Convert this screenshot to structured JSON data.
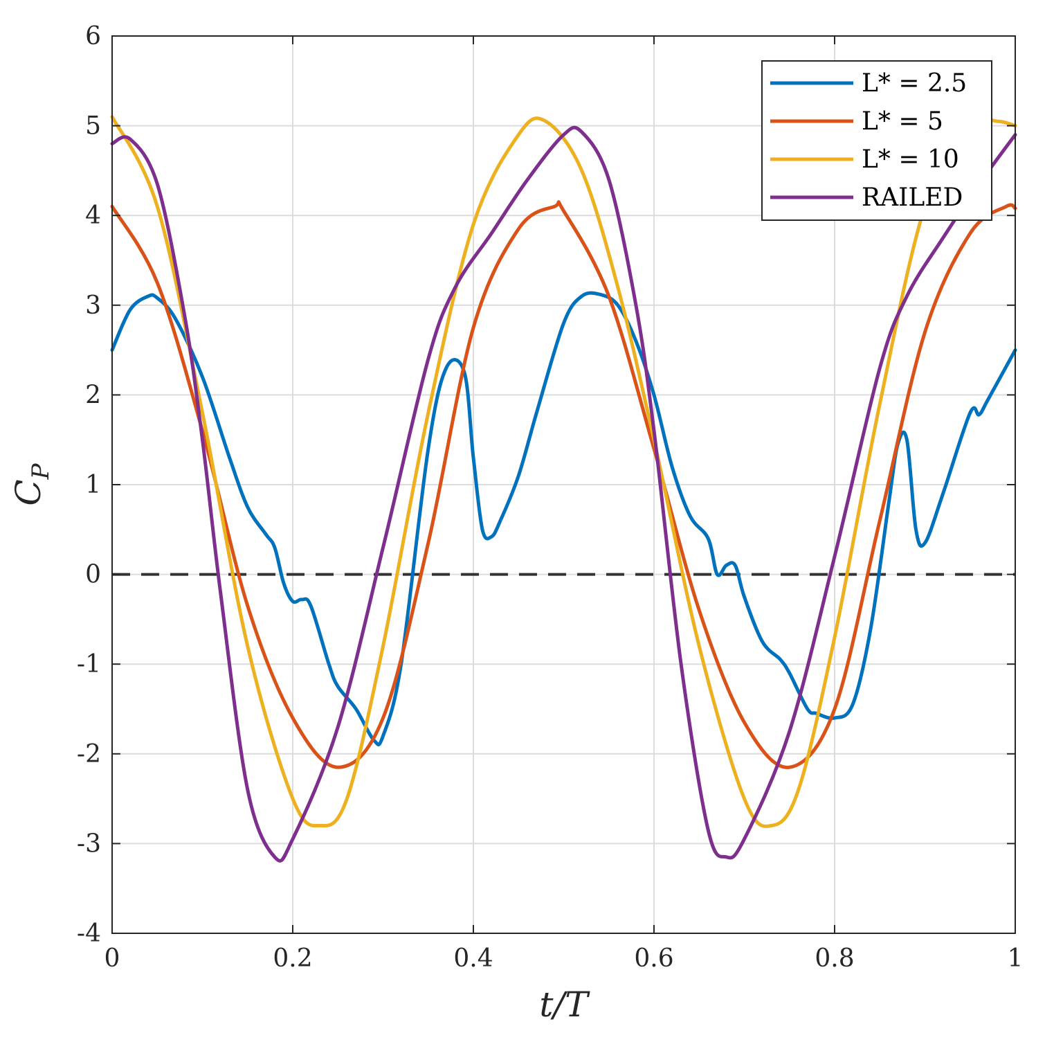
{
  "chart_data": {
    "type": "line",
    "xlabel": "t/T",
    "ylabel": "C_P",
    "xlim": [
      0,
      1
    ],
    "ylim": [
      -4,
      6
    ],
    "xticks": [
      "0",
      "0.2",
      "0.4",
      "0.6",
      "0.8",
      "1"
    ],
    "yticks": [
      "-4",
      "-3",
      "-2",
      "-1",
      "0",
      "1",
      "2",
      "3",
      "4",
      "5",
      "6"
    ],
    "grid": true,
    "legend_position": "top-right",
    "reference_line": {
      "y": 0,
      "style": "dashed",
      "color": "#333333"
    },
    "series": [
      {
        "name": "L* = 2.5",
        "color": "#0072BD",
        "x": [
          0,
          0.02,
          0.04,
          0.05,
          0.07,
          0.1,
          0.13,
          0.15,
          0.17,
          0.18,
          0.19,
          0.2,
          0.21,
          0.22,
          0.24,
          0.25,
          0.27,
          0.29,
          0.3,
          0.32,
          0.35,
          0.37,
          0.39,
          0.4,
          0.41,
          0.42,
          0.43,
          0.45,
          0.47,
          0.5,
          0.52,
          0.54,
          0.56,
          0.58,
          0.6,
          0.62,
          0.64,
          0.66,
          0.67,
          0.68,
          0.69,
          0.7,
          0.72,
          0.74,
          0.75,
          0.77,
          0.78,
          0.8,
          0.82,
          0.84,
          0.86,
          0.87,
          0.88,
          0.89,
          0.9,
          0.92,
          0.95,
          0.96,
          0.97,
          1.0
        ],
        "y": [
          2.5,
          2.95,
          3.1,
          3.08,
          2.85,
          2.2,
          1.3,
          0.75,
          0.45,
          0.3,
          -0.1,
          -0.3,
          -0.28,
          -0.35,
          -1.0,
          -1.25,
          -1.5,
          -1.85,
          -1.8,
          -1.0,
          1.4,
          2.3,
          2.25,
          1.3,
          0.5,
          0.42,
          0.6,
          1.1,
          1.8,
          2.8,
          3.1,
          3.12,
          3.0,
          2.6,
          2.0,
          1.2,
          0.65,
          0.4,
          0.0,
          0.1,
          0.1,
          -0.25,
          -0.75,
          -0.95,
          -1.1,
          -1.5,
          -1.55,
          -1.6,
          -1.45,
          -0.6,
          0.8,
          1.45,
          1.5,
          0.5,
          0.35,
          0.9,
          1.8,
          1.78,
          1.95,
          2.5
        ]
      },
      {
        "name": "L* = 5",
        "color": "#D95319",
        "x": [
          0,
          0.05,
          0.1,
          0.15,
          0.2,
          0.25,
          0.3,
          0.35,
          0.4,
          0.45,
          0.49,
          0.5,
          0.55,
          0.6,
          0.65,
          0.7,
          0.75,
          0.8,
          0.85,
          0.9,
          0.95,
          0.99,
          1.0
        ],
        "y": [
          4.1,
          3.25,
          1.6,
          -0.35,
          -1.6,
          -2.15,
          -1.6,
          0.35,
          2.75,
          3.85,
          4.1,
          4.05,
          3.1,
          1.4,
          -0.4,
          -1.65,
          -2.15,
          -1.5,
          0.6,
          2.7,
          3.8,
          4.1,
          4.08
        ]
      },
      {
        "name": "L* = 10",
        "color": "#EDB120",
        "x": [
          0,
          0.05,
          0.1,
          0.15,
          0.2,
          0.23,
          0.26,
          0.3,
          0.35,
          0.4,
          0.45,
          0.48,
          0.52,
          0.56,
          0.6,
          0.65,
          0.7,
          0.73,
          0.76,
          0.8,
          0.85,
          0.9,
          0.95,
          0.98,
          1.0
        ],
        "y": [
          5.1,
          4.1,
          1.8,
          -0.8,
          -2.5,
          -2.8,
          -2.5,
          -0.8,
          1.8,
          3.9,
          4.9,
          5.05,
          4.5,
          3.2,
          1.5,
          -0.8,
          -2.5,
          -2.8,
          -2.4,
          -0.7,
          1.9,
          4.1,
          5.0,
          5.05,
          5.0
        ]
      },
      {
        "name": "RAILED",
        "color": "#7E2F8E",
        "x": [
          0,
          0.02,
          0.05,
          0.08,
          0.1,
          0.12,
          0.15,
          0.18,
          0.2,
          0.25,
          0.3,
          0.35,
          0.38,
          0.42,
          0.46,
          0.5,
          0.52,
          0.55,
          0.58,
          0.6,
          0.63,
          0.66,
          0.68,
          0.7,
          0.75,
          0.8,
          0.85,
          0.88,
          0.92,
          0.96,
          1.0
        ],
        "y": [
          4.8,
          4.85,
          4.35,
          2.9,
          1.5,
          -0.2,
          -2.4,
          -3.15,
          -2.95,
          -1.7,
          0.3,
          2.4,
          3.2,
          3.8,
          4.4,
          4.9,
          4.93,
          4.4,
          3.0,
          1.6,
          -1.0,
          -2.85,
          -3.15,
          -2.95,
          -1.75,
          0.2,
          2.3,
          3.1,
          3.75,
          4.35,
          4.9
        ]
      }
    ]
  }
}
